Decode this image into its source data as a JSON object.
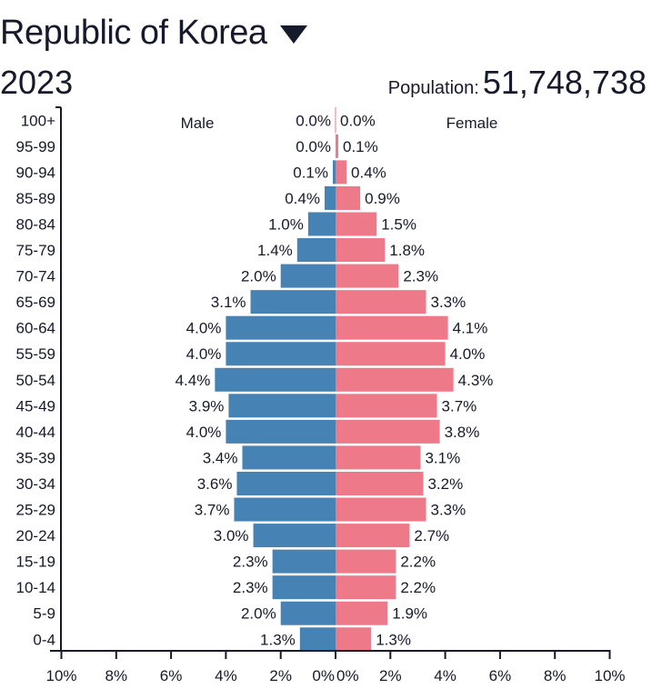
{
  "header": {
    "country": "Republic of Korea",
    "year": "2023",
    "population_label": "Population:",
    "population": "51,748,738"
  },
  "colors": {
    "male": "#4682b4",
    "female": "#ee7989",
    "axis": "#161a2b"
  },
  "chart_data": {
    "type": "bar",
    "orientation": "horizontal-pyramid",
    "categories": [
      "100+",
      "95-99",
      "90-94",
      "85-89",
      "80-84",
      "75-79",
      "70-74",
      "65-69",
      "60-64",
      "55-59",
      "50-54",
      "45-49",
      "40-44",
      "35-39",
      "30-34",
      "25-29",
      "20-24",
      "15-19",
      "10-14",
      "5-9",
      "0-4"
    ],
    "series": [
      {
        "name": "Male",
        "values": [
          0.0,
          0.0,
          0.1,
          0.4,
          1.0,
          1.4,
          2.0,
          3.1,
          4.0,
          4.0,
          4.4,
          3.9,
          4.0,
          3.4,
          3.6,
          3.7,
          3.0,
          2.3,
          2.3,
          2.0,
          1.3
        ]
      },
      {
        "name": "Female",
        "values": [
          0.0,
          0.1,
          0.4,
          0.9,
          1.5,
          1.8,
          2.3,
          3.3,
          4.1,
          4.0,
          4.3,
          3.7,
          3.8,
          3.1,
          3.2,
          3.3,
          2.7,
          2.2,
          2.2,
          1.9,
          1.3
        ]
      }
    ],
    "xlim": [
      -10,
      10
    ],
    "xticks": [
      "10%",
      "8%",
      "6%",
      "4%",
      "2%",
      "0%",
      "0%",
      "2%",
      "4%",
      "6%",
      "8%",
      "10%"
    ],
    "xtick_values": [
      -10,
      -8,
      -6,
      -4,
      -2,
      0,
      0,
      2,
      4,
      6,
      8,
      10
    ],
    "unit": "%"
  }
}
